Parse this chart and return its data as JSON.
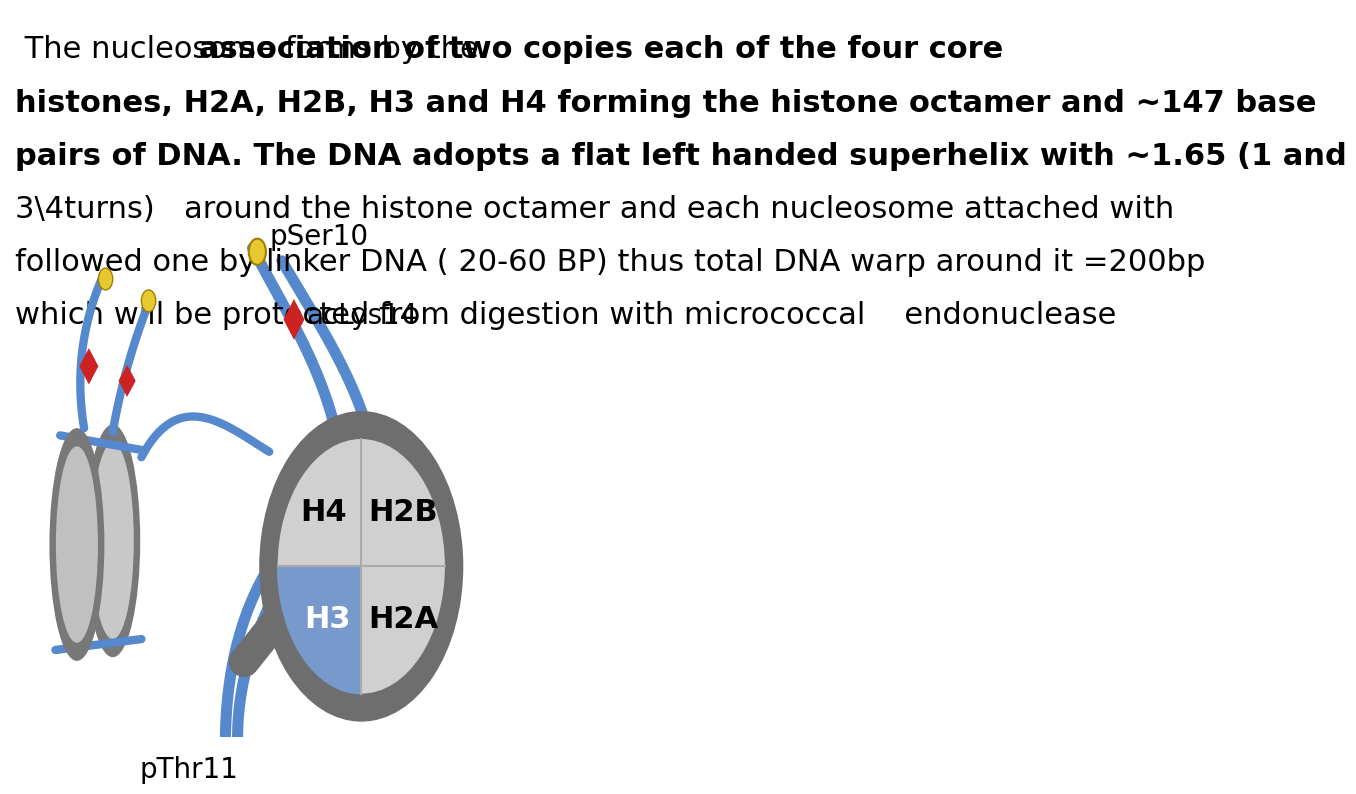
{
  "bg_color": "#ffffff",
  "text_line1_normal": " The nucleosome forms by the ",
  "text_line1_bold": "association of two copies each of the four core",
  "text_line2_bold": "histones, H2A, H2B, H3 and H4 forming the histone octamer and ~147 base",
  "text_line3_bold": "pairs of DNA. The DNA adopts a flat left handed superhelix with ~1.65 (1 and",
  "text_line4_normal": "3\\4turns)   around the histone octamer and each nucleosome attached with",
  "text_line5_normal": "followed one by linker DNA ( 20-60 BP) thus total DNA warp around it =200bp",
  "text_line6_normal": "which will be protected from digestion with micrococcal    endonuclease",
  "font_size": 22,
  "title_color": "#000000",
  "label_pSer10": "pSer10",
  "label_acLys14": "acLys14",
  "label_pThr11": "pThr11",
  "label_H4": "H4",
  "label_H2B": "H2B",
  "label_H3": "H3",
  "label_H2A": "H2A",
  "gray_outer": "#6e6e6e",
  "gray_inner": "#d0d0d0",
  "blue_dna": "#5588cc",
  "yellow_ball": "#e8c830",
  "red_mark": "#cc2222",
  "h3_color": "#7799cc",
  "label_font_size": 20,
  "diagram_label_font_size": 20
}
